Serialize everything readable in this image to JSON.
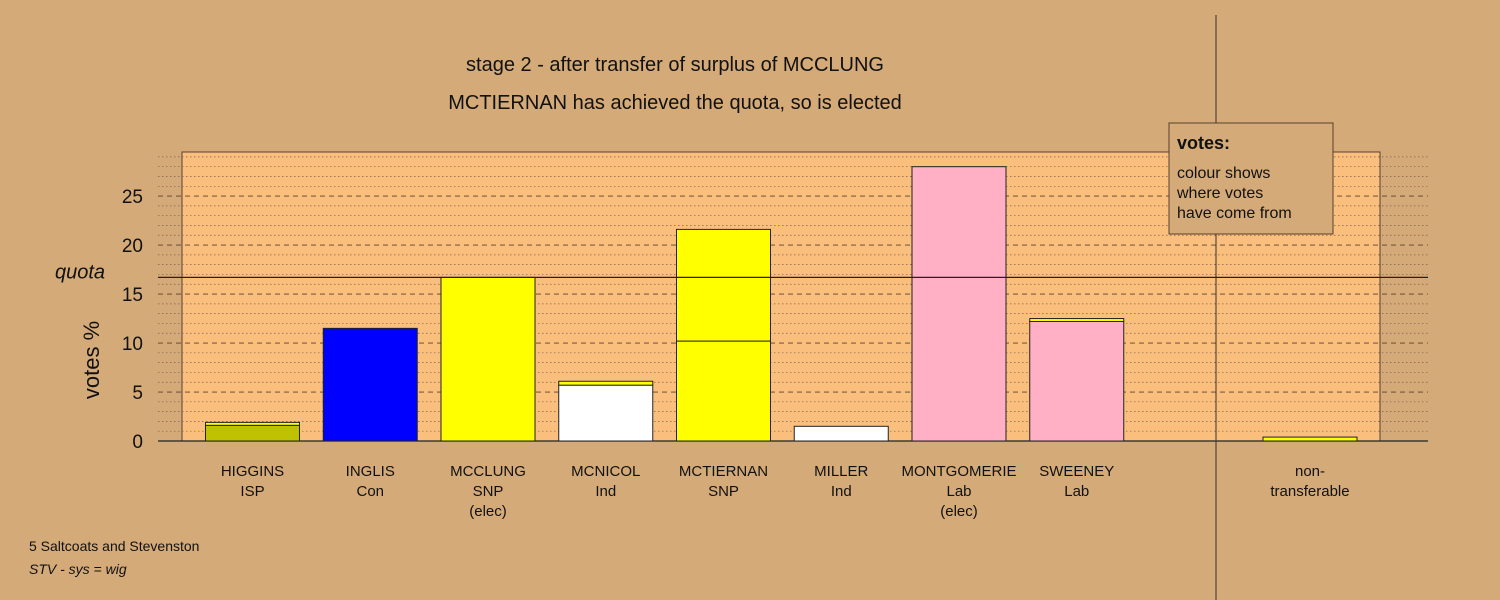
{
  "chart_data": {
    "type": "bar",
    "title_line1": "stage 2 - after transfer of surplus of MCCLUNG",
    "title_line2": "MCTIERNAN has achieved the quota, so is elected",
    "ylabel": "votes %",
    "ylim": [
      0,
      29.5
    ],
    "yticks": [
      0,
      5,
      10,
      15,
      20,
      25
    ],
    "quota": 16.7,
    "quota_label": "quota",
    "grid": true,
    "categories": [
      {
        "name": "HIGGINS",
        "party": "ISP",
        "note": "",
        "segments": [
          {
            "value": 1.6,
            "color": "#bfc200"
          },
          {
            "value": 0.3,
            "color": "#ffff00"
          }
        ]
      },
      {
        "name": "INGLIS",
        "party": "Con",
        "note": "",
        "segments": [
          {
            "value": 11.5,
            "color": "#0000ff"
          }
        ]
      },
      {
        "name": "MCCLUNG",
        "party": "SNP",
        "note": "(elec)",
        "segments": [
          {
            "value": 16.7,
            "color": "#ffff00"
          }
        ]
      },
      {
        "name": "MCNICOL",
        "party": "Ind",
        "note": "",
        "segments": [
          {
            "value": 5.7,
            "color": "#ffffff"
          },
          {
            "value": 0.4,
            "color": "#ffff00"
          }
        ]
      },
      {
        "name": "MCTIERNAN",
        "party": "SNP",
        "note": "",
        "segments": [
          {
            "value": 10.2,
            "color": "#ffff00"
          },
          {
            "value": 11.4,
            "color": "#ffff00"
          }
        ]
      },
      {
        "name": "MILLER",
        "party": "Ind",
        "note": "",
        "segments": [
          {
            "value": 1.5,
            "color": "#ffffff"
          }
        ]
      },
      {
        "name": "MONTGOMERIE",
        "party": "Lab",
        "note": "(elec)",
        "segments": [
          {
            "value": 28.0,
            "color": "#ffb0c4"
          }
        ]
      },
      {
        "name": "SWEENEY",
        "party": "Lab",
        "note": "",
        "segments": [
          {
            "value": 12.2,
            "color": "#ffb0c4"
          },
          {
            "value": 0.3,
            "color": "#ffff00"
          }
        ]
      }
    ],
    "nontransferable": {
      "label_line1": "non-",
      "label_line2": "transferable",
      "value": 0.4,
      "color": "#ffff00"
    },
    "legend": {
      "title": "votes:",
      "lines": [
        "colour shows",
        "where votes",
        "have come from"
      ],
      "position": "top-right"
    }
  },
  "footer": {
    "ward": "5 Saltcoats and Stevenston",
    "system": "STV - sys = wig"
  },
  "colors": {
    "background": "#d4aa78",
    "plot_area": "#fbbf7d",
    "legend_bg": "#d4aa78"
  }
}
